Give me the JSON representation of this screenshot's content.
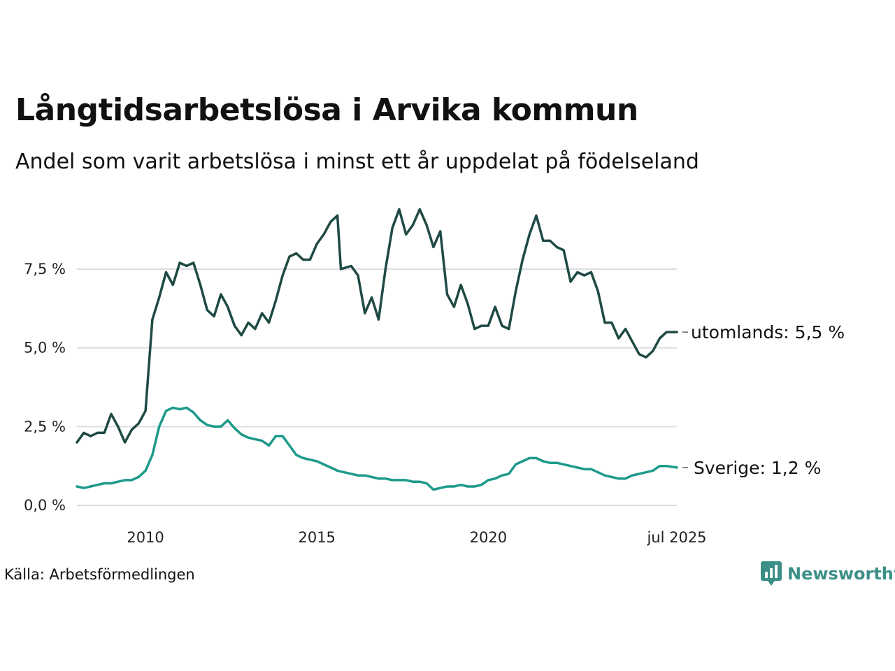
{
  "header": {
    "title": "Långtidsarbetslösa i Arvika kommun",
    "subtitle": "Andel som varit arbetslösa i minst ett år uppdelat på födelseland"
  },
  "footer": {
    "source": "Källa: Arbetsförmedlingen",
    "logo_text": "Newsworthy"
  },
  "colors": {
    "foreign": "#1f4a44",
    "sweden": "#1d9a8a",
    "grid": "#dcdce4",
    "logo": "#3c8f86"
  },
  "chart_data": {
    "type": "line",
    "title": "Långtidsarbetslösa i Arvika kommun",
    "subtitle": "Andel som varit arbetslösa i minst ett år uppdelat på födelseland",
    "xlabel": "",
    "ylabel": "",
    "x_ticks": [
      "2010",
      "2015",
      "2020",
      "jul 2025"
    ],
    "x_tick_dates": [
      2010.0,
      2015.0,
      2020.0,
      2025.5
    ],
    "xlim": [
      2008.0,
      2025.5
    ],
    "y_ticks": [
      "0,0 %",
      "2,5 %",
      "5,0 %",
      "7,5 %"
    ],
    "y_tick_values": [
      0,
      2.5,
      5.0,
      7.5
    ],
    "ylim": [
      0,
      9.5
    ],
    "grid": "horizontal",
    "legend": "end-of-line labels",
    "end_labels": [
      "utomlands: 5,5 %",
      "Sverige: 1,2 %"
    ],
    "series": [
      {
        "name": "utomlands",
        "points": [
          [
            2008.0,
            2.0
          ],
          [
            2008.2,
            2.3
          ],
          [
            2008.4,
            2.2
          ],
          [
            2008.6,
            2.3
          ],
          [
            2008.8,
            2.3
          ],
          [
            2009.0,
            2.9
          ],
          [
            2009.2,
            2.5
          ],
          [
            2009.4,
            2.0
          ],
          [
            2009.6,
            2.4
          ],
          [
            2009.8,
            2.6
          ],
          [
            2010.0,
            3.0
          ],
          [
            2010.2,
            5.9
          ],
          [
            2010.4,
            6.6
          ],
          [
            2010.6,
            7.4
          ],
          [
            2010.8,
            7.0
          ],
          [
            2011.0,
            7.7
          ],
          [
            2011.2,
            7.6
          ],
          [
            2011.4,
            7.7
          ],
          [
            2011.6,
            7.0
          ],
          [
            2011.8,
            6.2
          ],
          [
            2012.0,
            6.0
          ],
          [
            2012.2,
            6.7
          ],
          [
            2012.4,
            6.3
          ],
          [
            2012.6,
            5.7
          ],
          [
            2012.8,
            5.4
          ],
          [
            2013.0,
            5.8
          ],
          [
            2013.2,
            5.6
          ],
          [
            2013.4,
            6.1
          ],
          [
            2013.6,
            5.8
          ],
          [
            2013.8,
            6.5
          ],
          [
            2014.0,
            7.3
          ],
          [
            2014.2,
            7.9
          ],
          [
            2014.4,
            8.0
          ],
          [
            2014.6,
            7.8
          ],
          [
            2014.8,
            7.8
          ],
          [
            2015.0,
            8.3
          ],
          [
            2015.2,
            8.6
          ],
          [
            2015.4,
            9.0
          ],
          [
            2015.6,
            9.2
          ],
          [
            2015.7,
            7.5
          ],
          [
            2016.0,
            7.6
          ],
          [
            2016.2,
            7.3
          ],
          [
            2016.4,
            6.1
          ],
          [
            2016.6,
            6.6
          ],
          [
            2016.8,
            5.9
          ],
          [
            2017.0,
            7.5
          ],
          [
            2017.2,
            8.8
          ],
          [
            2017.4,
            9.4
          ],
          [
            2017.6,
            8.6
          ],
          [
            2017.8,
            8.9
          ],
          [
            2018.0,
            9.4
          ],
          [
            2018.2,
            8.9
          ],
          [
            2018.4,
            8.2
          ],
          [
            2018.6,
            8.7
          ],
          [
            2018.8,
            6.7
          ],
          [
            2019.0,
            6.3
          ],
          [
            2019.2,
            7.0
          ],
          [
            2019.4,
            6.4
          ],
          [
            2019.6,
            5.6
          ],
          [
            2019.8,
            5.7
          ],
          [
            2020.0,
            5.7
          ],
          [
            2020.2,
            6.3
          ],
          [
            2020.4,
            5.7
          ],
          [
            2020.6,
            5.6
          ],
          [
            2020.8,
            6.8
          ],
          [
            2021.0,
            7.8
          ],
          [
            2021.2,
            8.6
          ],
          [
            2021.4,
            9.2
          ],
          [
            2021.6,
            8.4
          ],
          [
            2021.8,
            8.4
          ],
          [
            2022.0,
            8.2
          ],
          [
            2022.2,
            8.1
          ],
          [
            2022.4,
            7.1
          ],
          [
            2022.6,
            7.4
          ],
          [
            2022.8,
            7.3
          ],
          [
            2023.0,
            7.4
          ],
          [
            2023.2,
            6.8
          ],
          [
            2023.4,
            5.8
          ],
          [
            2023.6,
            5.8
          ],
          [
            2023.8,
            5.3
          ],
          [
            2024.0,
            5.6
          ],
          [
            2024.2,
            5.2
          ],
          [
            2024.4,
            4.8
          ],
          [
            2024.6,
            4.7
          ],
          [
            2024.8,
            4.9
          ],
          [
            2025.0,
            5.3
          ],
          [
            2025.2,
            5.5
          ],
          [
            2025.5,
            5.5
          ]
        ]
      },
      {
        "name": "Sverige",
        "points": [
          [
            2008.0,
            0.6
          ],
          [
            2008.2,
            0.55
          ],
          [
            2008.4,
            0.6
          ],
          [
            2008.6,
            0.65
          ],
          [
            2008.8,
            0.7
          ],
          [
            2009.0,
            0.7
          ],
          [
            2009.2,
            0.75
          ],
          [
            2009.4,
            0.8
          ],
          [
            2009.6,
            0.8
          ],
          [
            2009.8,
            0.9
          ],
          [
            2010.0,
            1.1
          ],
          [
            2010.2,
            1.6
          ],
          [
            2010.4,
            2.5
          ],
          [
            2010.6,
            3.0
          ],
          [
            2010.8,
            3.1
          ],
          [
            2011.0,
            3.05
          ],
          [
            2011.2,
            3.1
          ],
          [
            2011.4,
            2.95
          ],
          [
            2011.6,
            2.7
          ],
          [
            2011.8,
            2.55
          ],
          [
            2012.0,
            2.5
          ],
          [
            2012.2,
            2.5
          ],
          [
            2012.4,
            2.7
          ],
          [
            2012.6,
            2.45
          ],
          [
            2012.8,
            2.25
          ],
          [
            2013.0,
            2.15
          ],
          [
            2013.2,
            2.1
          ],
          [
            2013.4,
            2.05
          ],
          [
            2013.6,
            1.9
          ],
          [
            2013.8,
            2.2
          ],
          [
            2014.0,
            2.2
          ],
          [
            2014.2,
            1.9
          ],
          [
            2014.4,
            1.6
          ],
          [
            2014.6,
            1.5
          ],
          [
            2014.8,
            1.45
          ],
          [
            2015.0,
            1.4
          ],
          [
            2015.2,
            1.3
          ],
          [
            2015.4,
            1.2
          ],
          [
            2015.6,
            1.1
          ],
          [
            2015.8,
            1.05
          ],
          [
            2016.0,
            1.0
          ],
          [
            2016.2,
            0.95
          ],
          [
            2016.4,
            0.95
          ],
          [
            2016.6,
            0.9
          ],
          [
            2016.8,
            0.85
          ],
          [
            2017.0,
            0.85
          ],
          [
            2017.2,
            0.8
          ],
          [
            2017.4,
            0.8
          ],
          [
            2017.6,
            0.8
          ],
          [
            2017.8,
            0.75
          ],
          [
            2018.0,
            0.75
          ],
          [
            2018.2,
            0.7
          ],
          [
            2018.4,
            0.5
          ],
          [
            2018.6,
            0.55
          ],
          [
            2018.8,
            0.6
          ],
          [
            2019.0,
            0.6
          ],
          [
            2019.2,
            0.65
          ],
          [
            2019.4,
            0.6
          ],
          [
            2019.6,
            0.6
          ],
          [
            2019.8,
            0.65
          ],
          [
            2020.0,
            0.8
          ],
          [
            2020.2,
            0.85
          ],
          [
            2020.4,
            0.95
          ],
          [
            2020.6,
            1.0
          ],
          [
            2020.8,
            1.3
          ],
          [
            2021.0,
            1.4
          ],
          [
            2021.2,
            1.5
          ],
          [
            2021.4,
            1.5
          ],
          [
            2021.6,
            1.4
          ],
          [
            2021.8,
            1.35
          ],
          [
            2022.0,
            1.35
          ],
          [
            2022.2,
            1.3
          ],
          [
            2022.4,
            1.25
          ],
          [
            2022.6,
            1.2
          ],
          [
            2022.8,
            1.15
          ],
          [
            2023.0,
            1.15
          ],
          [
            2023.2,
            1.05
          ],
          [
            2023.4,
            0.95
          ],
          [
            2023.6,
            0.9
          ],
          [
            2023.8,
            0.85
          ],
          [
            2024.0,
            0.85
          ],
          [
            2024.2,
            0.95
          ],
          [
            2024.4,
            1.0
          ],
          [
            2024.6,
            1.05
          ],
          [
            2024.8,
            1.1
          ],
          [
            2025.0,
            1.25
          ],
          [
            2025.2,
            1.25
          ],
          [
            2025.5,
            1.2
          ]
        ]
      }
    ]
  }
}
